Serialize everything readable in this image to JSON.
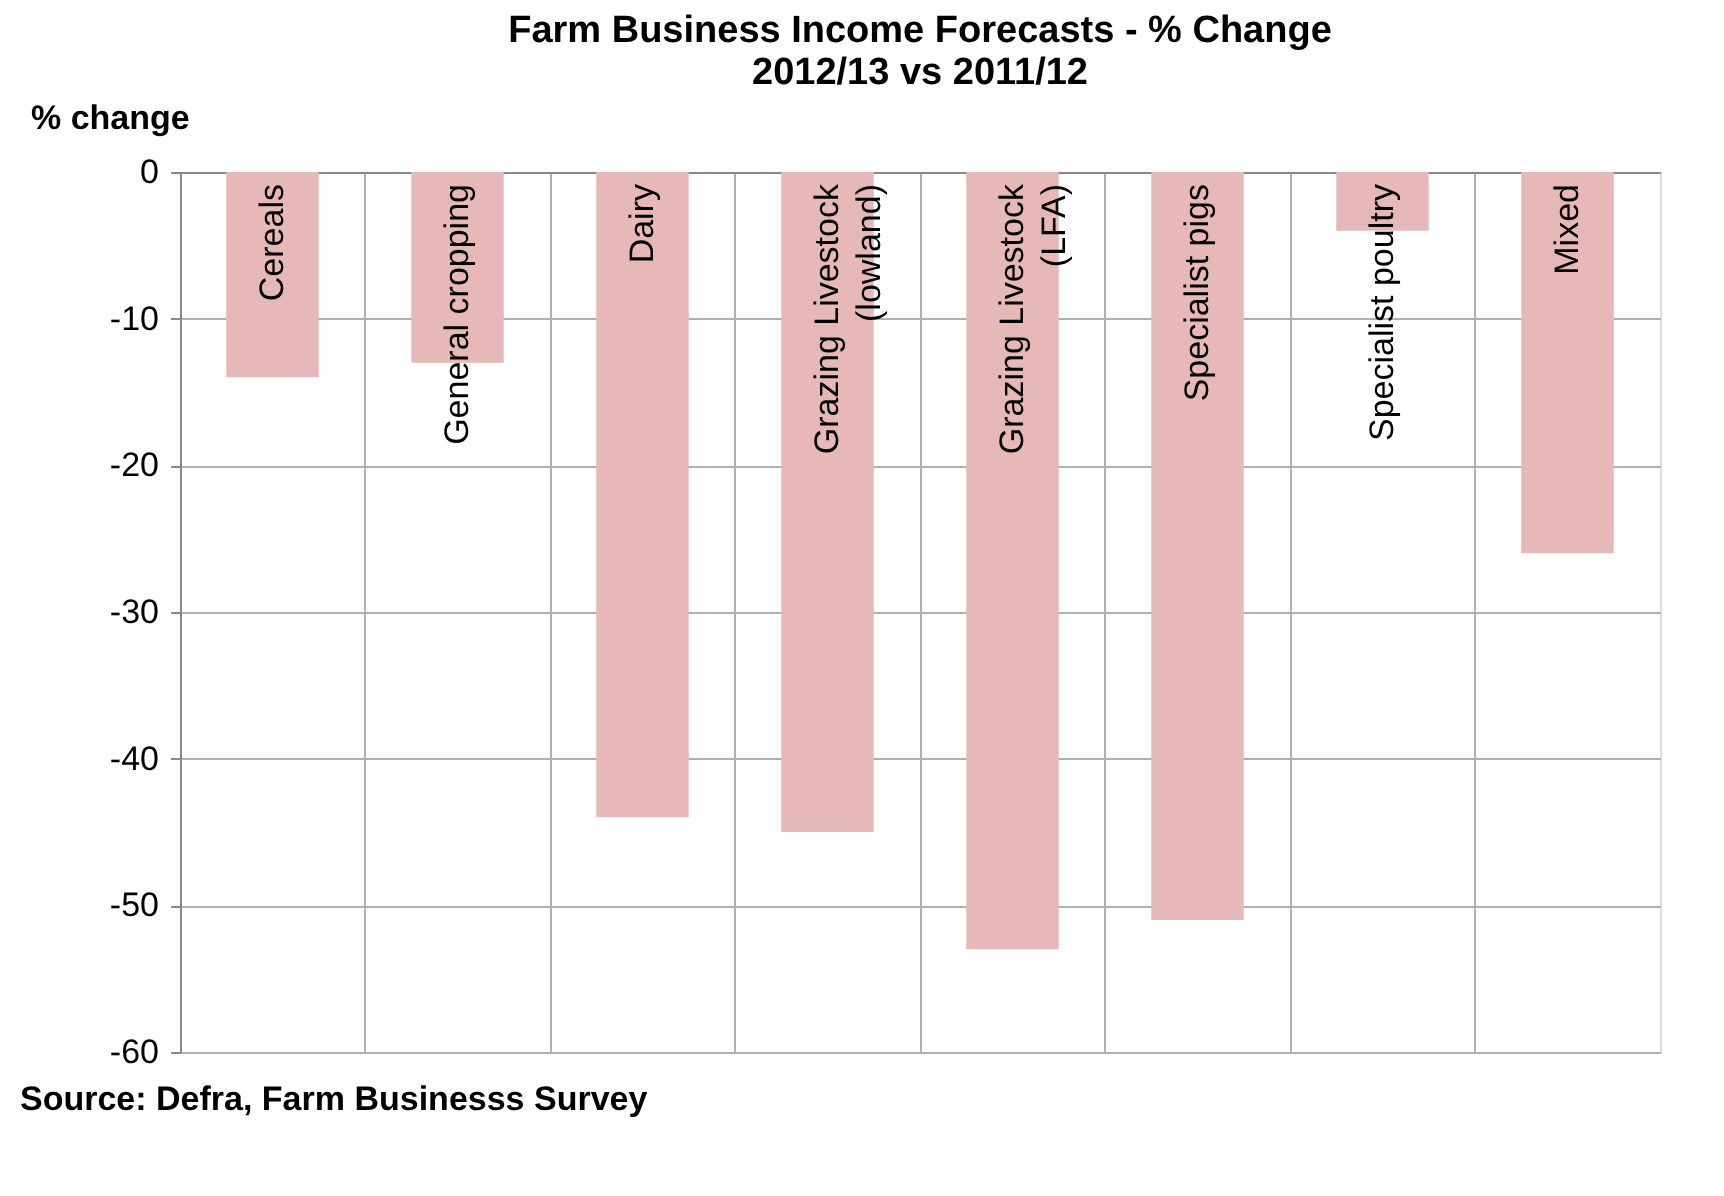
{
  "chart_data": {
    "type": "bar",
    "title": [
      "Farm Business Income Forecasts - % Change",
      "2012/13 vs 2011/12"
    ],
    "ylabel": "% change",
    "categories": [
      "Cereals",
      "General cropping",
      "Dairy",
      "Grazing Livestock (lowland)",
      "Grazing Livestock (LFA)",
      "Specialist pigs",
      "Specialist poultry",
      "Mixed"
    ],
    "values": [
      -14,
      -13,
      -44,
      -45,
      -53,
      -51,
      -4,
      -26
    ],
    "color": "#e6b9b8",
    "ylim": [
      -60,
      0
    ],
    "yticks": [
      0,
      -10,
      -20,
      -30,
      -40,
      -50,
      -60
    ],
    "grid": true,
    "annotations": [
      "Source: Defra, Farm Businesss Survey"
    ]
  }
}
